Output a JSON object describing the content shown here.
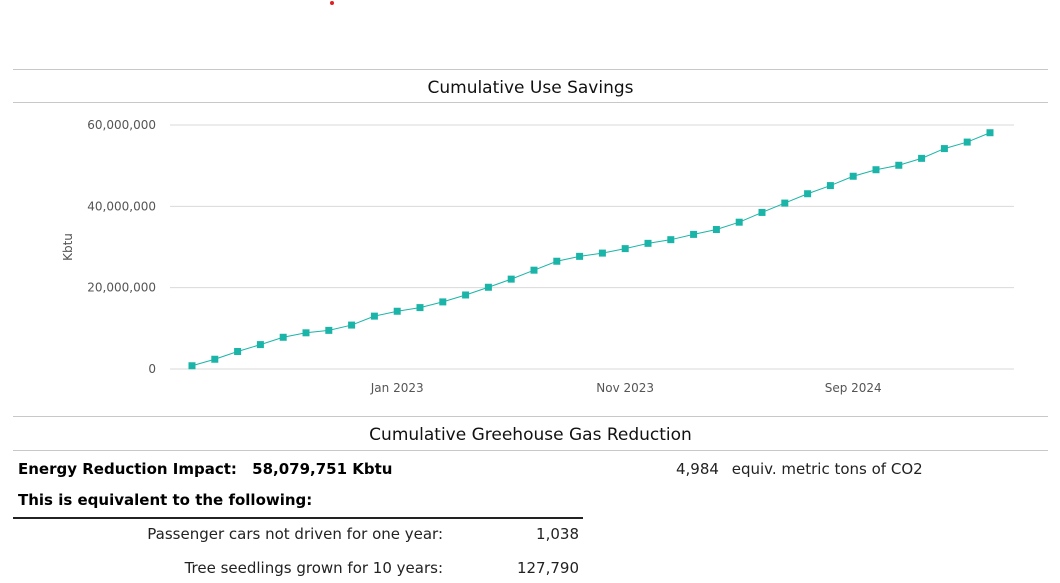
{
  "chart_data": {
    "type": "line",
    "title": "Cumulative Use Savings",
    "ylabel": "Kbtu",
    "xlabel": "",
    "ylim": [
      0,
      60000000
    ],
    "yticks": [
      0,
      20000000,
      40000000,
      60000000
    ],
    "ytick_labels": [
      "0",
      "20,000,000",
      "40,000,000",
      "60,000,000"
    ],
    "xticks": [
      {
        "label": "Jan 2023",
        "index": 9
      },
      {
        "label": "Nov 2023",
        "index": 19
      },
      {
        "label": "Sep 2024",
        "index": 29
      }
    ],
    "grid": true,
    "marker": "square",
    "color": "#1ab5a8",
    "series": [
      {
        "values": [
          800000,
          2400000,
          4300000,
          6000000,
          7800000,
          8900000,
          9500000,
          10800000,
          13000000,
          14200000,
          15100000,
          16500000,
          18200000,
          20100000,
          22100000,
          24300000,
          26500000,
          27700000,
          28500000,
          29600000,
          30900000,
          31800000,
          33100000,
          34300000,
          36100000,
          38500000,
          40800000,
          43100000,
          45100000,
          47400000,
          49000000,
          50100000,
          51800000,
          54200000,
          55800000,
          58100000
        ]
      }
    ]
  },
  "ghg": {
    "title": "Cumulative Greehouse Gas Reduction",
    "impact_label": "Energy Reduction Impact:",
    "impact_value": "58,079,751 Kbtu",
    "co2_value": "4,984",
    "co2_unit": "equiv. metric tons of CO2",
    "equivalent_label": "This is equivalent to the following:",
    "rows": [
      {
        "label": "Passenger cars not driven for one year:",
        "value": "1,038"
      },
      {
        "label": "Tree seedlings grown for 10 years:",
        "value": "127,790"
      }
    ]
  }
}
